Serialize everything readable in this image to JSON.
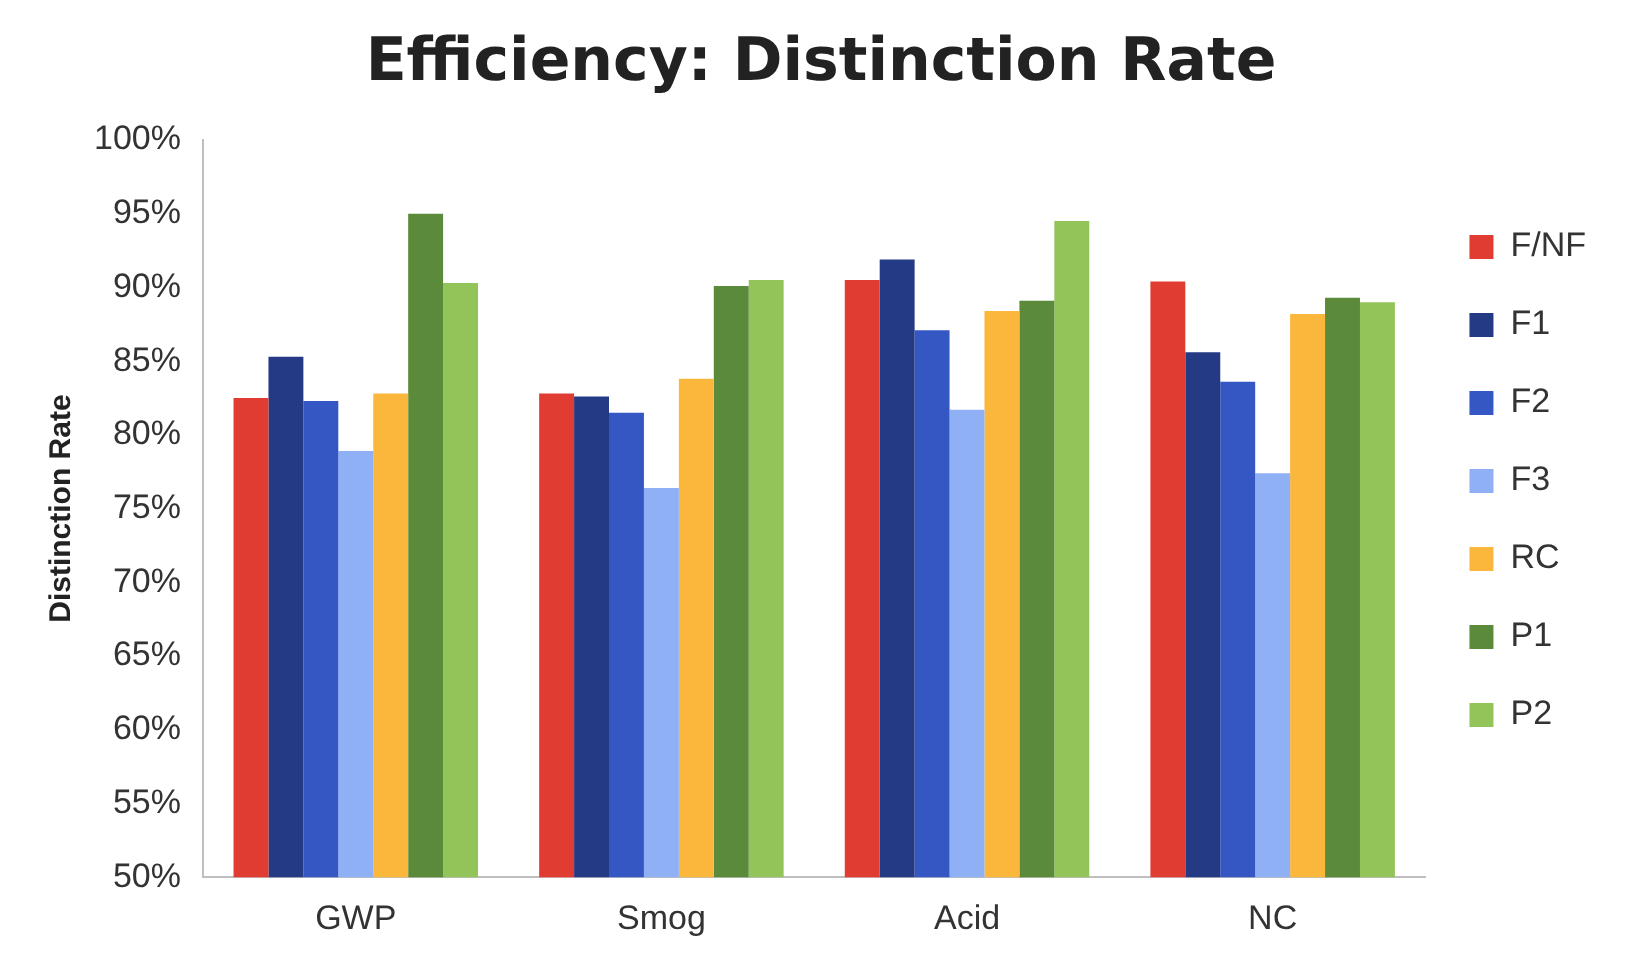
{
  "chart_data": {
    "type": "bar",
    "title": "Efficiency: Distinction Rate",
    "ylabel": "Distinction Rate",
    "categories": [
      "GWP",
      "Smog",
      "Acid",
      "NC"
    ],
    "series": [
      {
        "name": "F/NF",
        "color": "#e03c31",
        "values": [
          82.5,
          82.8,
          90.5,
          90.4
        ]
      },
      {
        "name": "F1",
        "color": "#253a85",
        "values": [
          85.3,
          82.6,
          91.9,
          85.6
        ]
      },
      {
        "name": "F2",
        "color": "#3557c4",
        "values": [
          82.3,
          81.5,
          87.1,
          83.6
        ]
      },
      {
        "name": "F3",
        "color": "#8fb0f5",
        "values": [
          78.9,
          76.4,
          81.7,
          77.4
        ]
      },
      {
        "name": "RC",
        "color": "#fbb73c",
        "values": [
          82.8,
          83.8,
          88.4,
          88.2
        ]
      },
      {
        "name": "P1",
        "color": "#5a8a3a",
        "values": [
          95,
          90.1,
          89.1,
          89.3
        ]
      },
      {
        "name": "P2",
        "color": "#93c45a",
        "values": [
          90.3,
          90.5,
          94.5,
          89.0
        ]
      }
    ],
    "ylim": [
      50,
      100
    ],
    "yticks": [
      {
        "value": 50,
        "label": "50%"
      },
      {
        "value": 55,
        "label": "55%"
      },
      {
        "value": 60,
        "label": "60%"
      },
      {
        "value": 65,
        "label": "65%"
      },
      {
        "value": 70,
        "label": "70%"
      },
      {
        "value": 75,
        "label": "75%"
      },
      {
        "value": 80,
        "label": "80%"
      },
      {
        "value": 85,
        "label": "85%"
      },
      {
        "value": 90,
        "label": "90%"
      },
      {
        "value": 95,
        "label": "95%"
      },
      {
        "value": 100,
        "label": "100%"
      }
    ],
    "grid": false,
    "legend": "right"
  }
}
